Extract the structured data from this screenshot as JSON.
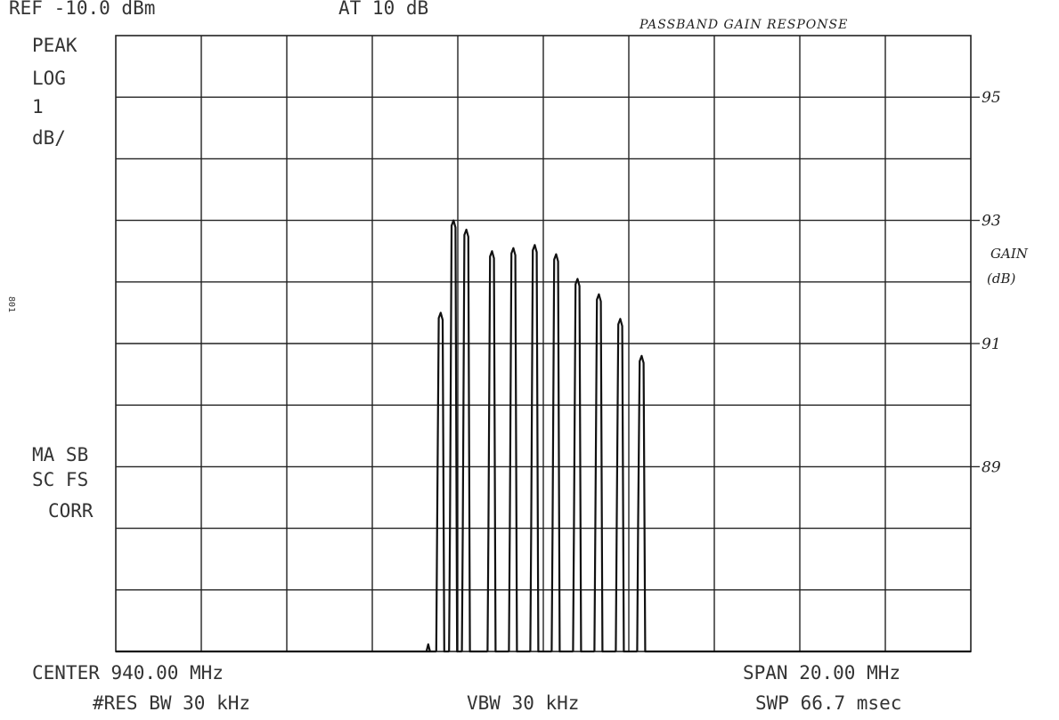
{
  "header": {
    "ref_level": "REF -10.0 dBm",
    "attenuation": "AT 10 dB"
  },
  "annotations": {
    "title": "PASSBAND GAIN RESPONSE",
    "side_label_line1": "GAIN",
    "side_label_line2": "(dB)",
    "margin_mark": "801"
  },
  "left_panel": {
    "detector": "PEAK",
    "scale_type": "LOG",
    "scale_value": "1",
    "scale_unit": "dB/",
    "status_line1": "MA SB",
    "status_line2": "SC FS",
    "status_line3": "CORR"
  },
  "footer": {
    "center": "CENTER 940.00 MHz",
    "span": "SPAN 20.00 MHz",
    "res_bw": "#RES BW 30 kHz",
    "vbw": "VBW 30 kHz",
    "sweep": "SWP 66.7 msec"
  },
  "chart_data": {
    "type": "line",
    "title": "PASSBAND GAIN RESPONSE",
    "xlabel": "",
    "ylabel": "GAIN (dB)",
    "x_unit": "MHz",
    "xlim": [
      930.0,
      950.0
    ],
    "ylim": [
      86.0,
      96.0
    ],
    "grid": true,
    "x_divisions": 10,
    "y_divisions": 10,
    "y_ticks": [
      {
        "value": 95,
        "label": "95"
      },
      {
        "value": 93,
        "label": "93"
      },
      {
        "value": 91,
        "label": "91"
      },
      {
        "value": 89,
        "label": "89"
      }
    ],
    "floor": 86.0,
    "series": [
      {
        "peaks": [
          {
            "x": 937.6,
            "y": 91.5,
            "pre": 88.0
          },
          {
            "x": 937.9,
            "y": 93.0,
            "pre": 88.0
          },
          {
            "x": 938.2,
            "y": 92.85,
            "pre": 88.0
          },
          {
            "x": 938.8,
            "y": 92.5,
            "pre": 88.0
          },
          {
            "x": 939.3,
            "y": 92.55,
            "pre": 88.0
          },
          {
            "x": 939.8,
            "y": 92.6,
            "pre": 88.0
          },
          {
            "x": 940.3,
            "y": 92.45,
            "pre": 88.0
          },
          {
            "x": 940.8,
            "y": 92.05,
            "pre": 88.0
          },
          {
            "x": 941.3,
            "y": 91.8,
            "pre": 88.0
          },
          {
            "x": 941.8,
            "y": 91.4,
            "pre": 88.0
          },
          {
            "x": 942.3,
            "y": 90.8,
            "pre": 88.0
          }
        ]
      }
    ]
  }
}
